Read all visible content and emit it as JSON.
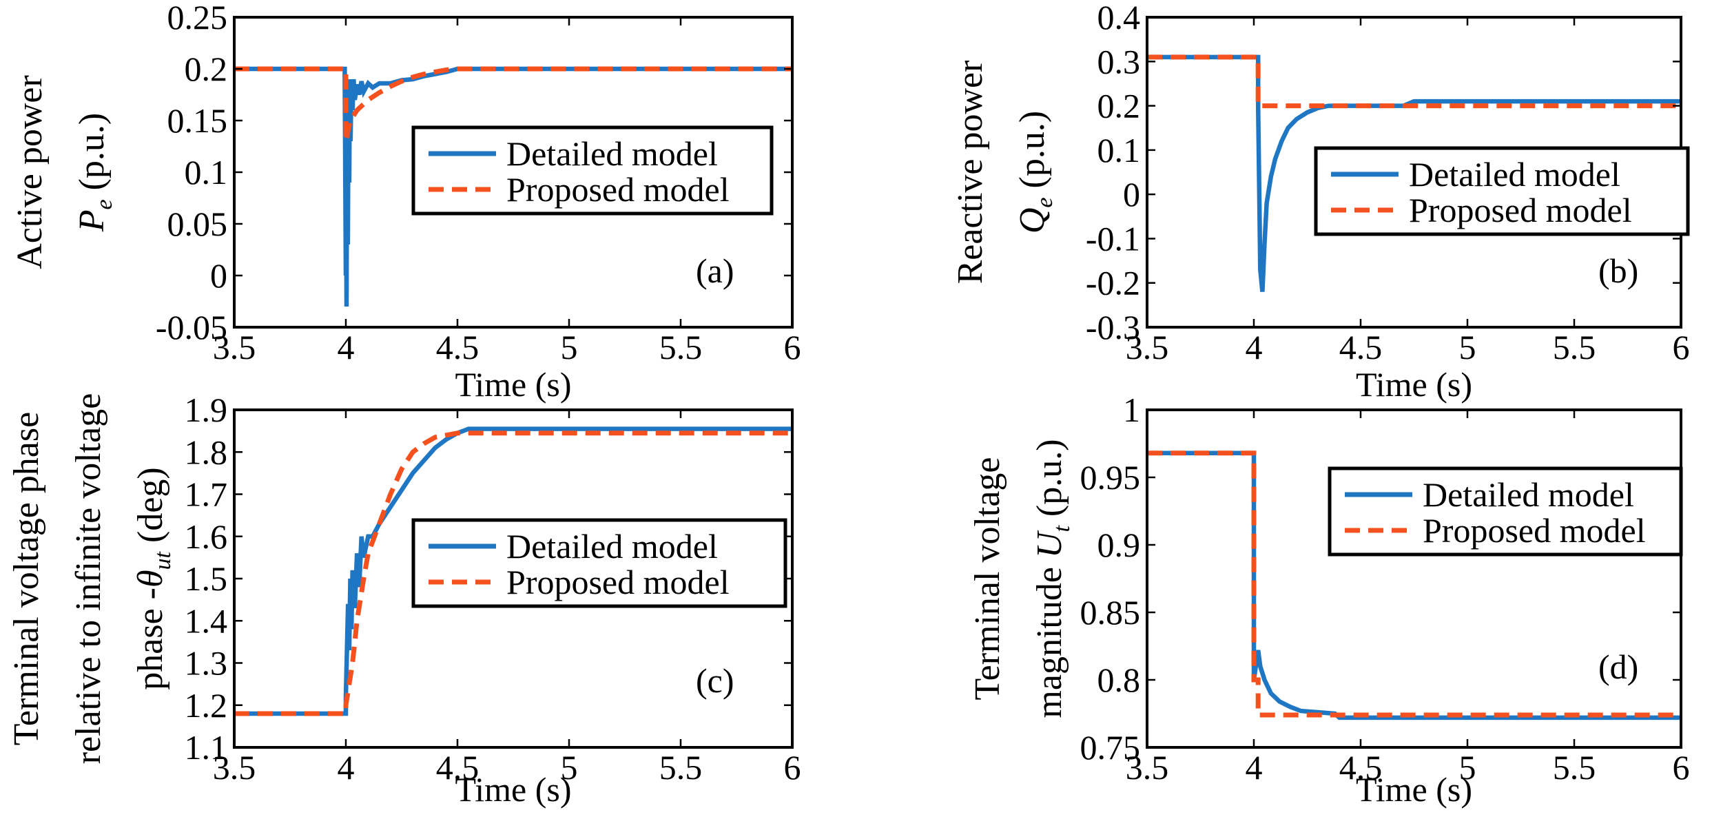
{
  "figure": {
    "background": "#ffffff",
    "detailed_color": "#1f77c4",
    "proposed_color": "#f4511e"
  },
  "chart_data": [
    {
      "id": "a",
      "type": "line",
      "panel_label": "(a)",
      "xlabel": "Time (s)",
      "ylabel_lines": [
        "Active power"
      ],
      "ylabel_symbol": "P",
      "ylabel_sub": "e",
      "ylabel_unit": " (p.u.)",
      "xlim": [
        3.5,
        6
      ],
      "ylim": [
        -0.05,
        0.25
      ],
      "xticks": [
        3.5,
        4,
        4.5,
        5,
        5.5,
        6
      ],
      "xtick_labels": [
        "3.5",
        "4",
        "4.5",
        "5",
        "5.5",
        "6"
      ],
      "yticks": [
        -0.05,
        0,
        0.05,
        0.1,
        0.15,
        0.2,
        0.25
      ],
      "ytick_labels": [
        "-0.05",
        "0",
        "0.05",
        "0.1",
        "0.15",
        "0.2",
        "0.25"
      ],
      "legend": [
        "Detailed model",
        "Proposed model"
      ],
      "series": [
        {
          "name": "Detailed model",
          "style": "solid",
          "x": [
            3.5,
            3.995,
            3.995,
            4.0,
            4.0,
            4.003,
            4.006,
            4.009,
            4.012,
            4.015,
            4.018,
            4.021,
            4.025,
            4.03,
            4.035,
            4.04,
            4.05,
            4.06,
            4.07,
            4.08,
            4.1,
            4.12,
            4.15,
            4.2,
            4.25,
            4.3,
            4.35,
            4.4,
            4.45,
            4.5,
            6.0
          ],
          "values": [
            0.2,
            0.2,
            0.195,
            0.0,
            0.19,
            -0.03,
            0.19,
            0.03,
            0.185,
            0.09,
            0.19,
            0.13,
            0.185,
            0.16,
            0.19,
            0.17,
            0.185,
            0.175,
            0.188,
            0.178,
            0.186,
            0.182,
            0.186,
            0.186,
            0.189,
            0.19,
            0.193,
            0.195,
            0.197,
            0.2,
            0.2
          ]
        },
        {
          "name": "Proposed model",
          "style": "dashed",
          "x": [
            3.5,
            4.0,
            4.0,
            4.02,
            4.05,
            4.1,
            4.15,
            4.2,
            4.25,
            4.3,
            4.35,
            4.4,
            4.45,
            4.5,
            6.0
          ],
          "values": [
            0.2,
            0.2,
            0.13,
            0.15,
            0.16,
            0.17,
            0.177,
            0.183,
            0.188,
            0.192,
            0.195,
            0.197,
            0.199,
            0.2,
            0.2
          ]
        }
      ]
    },
    {
      "id": "b",
      "type": "line",
      "panel_label": "(b)",
      "xlabel": "Time (s)",
      "ylabel_lines": [
        "Reactive power"
      ],
      "ylabel_symbol": "Q",
      "ylabel_sub": "e",
      "ylabel_unit": " (p.u.)",
      "xlim": [
        3.5,
        6
      ],
      "ylim": [
        -0.3,
        0.4
      ],
      "xticks": [
        3.5,
        4,
        4.5,
        5,
        5.5,
        6
      ],
      "xtick_labels": [
        "3.5",
        "4",
        "4.5",
        "5",
        "5.5",
        "6"
      ],
      "yticks": [
        -0.3,
        -0.2,
        -0.1,
        0,
        0.1,
        0.2,
        0.3,
        0.4
      ],
      "ytick_labels": [
        "-0.3",
        "-0.2",
        "-0.1",
        "0",
        "0.1",
        "0.2",
        "0.3",
        "0.4"
      ],
      "legend": [
        "Detailed model",
        "Proposed model"
      ],
      "series": [
        {
          "name": "Detailed model",
          "style": "solid",
          "x": [
            3.5,
            4.02,
            4.02,
            4.03,
            4.04,
            4.05,
            4.06,
            4.08,
            4.1,
            4.13,
            4.16,
            4.2,
            4.25,
            4.3,
            4.35,
            4.5,
            4.7,
            4.75,
            6.0
          ],
          "values": [
            0.31,
            0.31,
            0.2,
            -0.17,
            -0.22,
            -0.11,
            -0.02,
            0.04,
            0.08,
            0.12,
            0.15,
            0.17,
            0.185,
            0.195,
            0.2,
            0.2,
            0.2,
            0.21,
            0.21
          ]
        },
        {
          "name": "Proposed model",
          "style": "dashed",
          "x": [
            3.5,
            4.02,
            4.02,
            6.0
          ],
          "values": [
            0.31,
            0.31,
            0.2,
            0.2
          ]
        }
      ]
    },
    {
      "id": "c",
      "type": "line",
      "panel_label": "(c)",
      "xlabel": "Time (s)",
      "ylabel_lines": [
        "Terminal voltage phase",
        "relative to infinite voltage"
      ],
      "ylabel_symbol": "phase -θ",
      "ylabel_sub": "ut",
      "ylabel_unit": " (deg)",
      "xlim": [
        3.5,
        6
      ],
      "ylim": [
        1.1,
        1.9
      ],
      "xticks": [
        3.5,
        4,
        4.5,
        5,
        5.5,
        6
      ],
      "xtick_labels": [
        "3.5",
        "4",
        "4.5",
        "5",
        "5.5",
        "6"
      ],
      "yticks": [
        1.1,
        1.2,
        1.3,
        1.4,
        1.5,
        1.6,
        1.7,
        1.8,
        1.9
      ],
      "ytick_labels": [
        "1.1",
        "1.2",
        "1.3",
        "1.4",
        "1.5",
        "1.6",
        "1.7",
        "1.8",
        "1.9"
      ],
      "legend": [
        "Detailed model",
        "Proposed model"
      ],
      "series": [
        {
          "name": "Detailed model",
          "style": "solid",
          "x": [
            3.5,
            4.0,
            4.0,
            4.01,
            4.015,
            4.02,
            4.025,
            4.03,
            4.04,
            4.05,
            4.06,
            4.07,
            4.08,
            4.1,
            4.12,
            4.15,
            4.2,
            4.25,
            4.3,
            4.35,
            4.4,
            4.45,
            4.5,
            4.55,
            6.0
          ],
          "values": [
            1.18,
            1.18,
            1.22,
            1.44,
            1.33,
            1.5,
            1.38,
            1.52,
            1.43,
            1.56,
            1.48,
            1.6,
            1.55,
            1.6,
            1.6,
            1.63,
            1.67,
            1.71,
            1.75,
            1.78,
            1.81,
            1.83,
            1.845,
            1.855,
            1.855
          ]
        },
        {
          "name": "Proposed model",
          "style": "dashed",
          "x": [
            3.5,
            4.0,
            4.0,
            4.03,
            4.05,
            4.08,
            4.1,
            4.15,
            4.2,
            4.25,
            4.3,
            4.35,
            4.4,
            4.45,
            4.5,
            6.0
          ],
          "values": [
            1.18,
            1.18,
            1.2,
            1.3,
            1.4,
            1.5,
            1.56,
            1.63,
            1.7,
            1.76,
            1.8,
            1.82,
            1.835,
            1.84,
            1.845,
            1.845
          ]
        }
      ]
    },
    {
      "id": "d",
      "type": "line",
      "panel_label": "(d)",
      "xlabel": "Time (s)",
      "ylabel_lines": [
        "Terminal voltage"
      ],
      "ylabel_symbol": "magnitude U",
      "ylabel_sub": "t",
      "ylabel_unit": " (p.u.)",
      "xlim": [
        3.5,
        6
      ],
      "ylim": [
        0.75,
        1.0
      ],
      "xticks": [
        3.5,
        4,
        4.5,
        5,
        5.5,
        6
      ],
      "xtick_labels": [
        "3.5",
        "4",
        "4.5",
        "5",
        "5.5",
        "6"
      ],
      "yticks": [
        0.75,
        0.8,
        0.85,
        0.9,
        0.95,
        1.0
      ],
      "ytick_labels": [
        "0.75",
        "0.8",
        "0.85",
        "0.9",
        "0.95",
        "1"
      ],
      "legend": [
        "Detailed model",
        "Proposed model"
      ],
      "series": [
        {
          "name": "Detailed model",
          "style": "solid",
          "x": [
            3.5,
            4.0,
            4.0,
            4.02,
            4.03,
            4.05,
            4.08,
            4.12,
            4.17,
            4.22,
            4.3,
            4.38,
            4.4,
            6.0
          ],
          "values": [
            0.968,
            0.968,
            0.8,
            0.822,
            0.81,
            0.8,
            0.79,
            0.784,
            0.78,
            0.777,
            0.776,
            0.775,
            0.772,
            0.772
          ]
        },
        {
          "name": "Proposed model",
          "style": "dashed",
          "x": [
            3.5,
            4.0,
            4.0,
            4.02,
            4.02,
            6.0
          ],
          "values": [
            0.968,
            0.968,
            0.8,
            0.8,
            0.774,
            0.774
          ]
        }
      ]
    }
  ]
}
